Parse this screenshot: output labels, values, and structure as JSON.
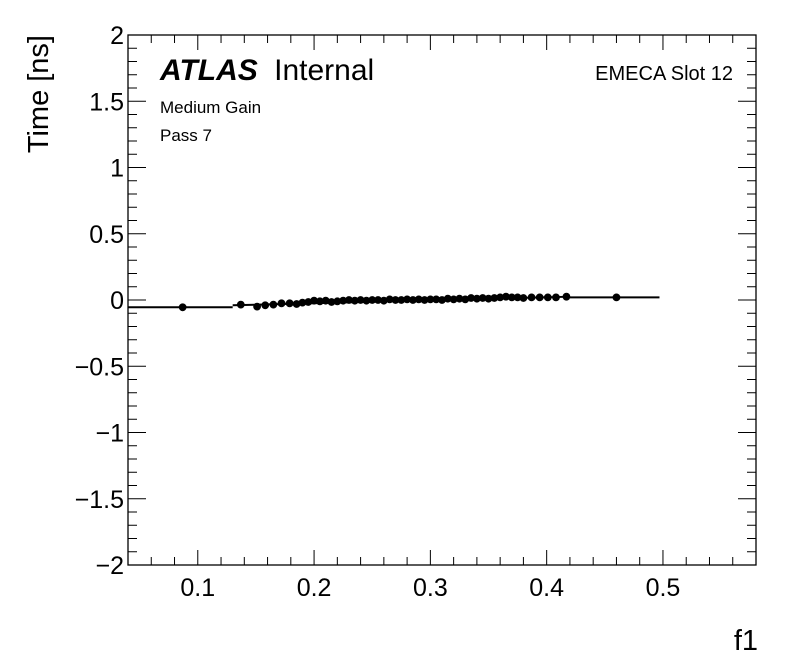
{
  "chart_data": {
    "type": "scatter",
    "xlabel": "f1",
    "ylabel": "Time [ns]",
    "xlim": [
      0.04,
      0.58
    ],
    "ylim": [
      -2,
      2
    ],
    "xticks": [
      0.1,
      0.2,
      0.3,
      0.4,
      0.5
    ],
    "xtick_labels": [
      "0.1",
      "0.2",
      "0.3",
      "0.4",
      "0.5"
    ],
    "yticks": [
      -2,
      -1.5,
      -1,
      -0.5,
      0,
      0.5,
      1,
      1.5,
      2
    ],
    "ytick_labels": [
      "−2",
      "−1.5",
      "−1",
      "−0.5",
      "0",
      "0.5",
      "1",
      "1.5",
      "2"
    ],
    "grid": false,
    "annotations": {
      "atlas": "ATLAS",
      "atlas_status": "Internal",
      "gain": "Medium Gain",
      "pass": "Pass 7",
      "region": "EMECA Slot 12"
    },
    "series": [
      {
        "marker": "circle",
        "color": "#000000",
        "x": [
          0.087,
          0.137,
          0.151,
          0.158,
          0.165,
          0.172,
          0.179,
          0.185,
          0.19,
          0.195,
          0.2,
          0.205,
          0.21,
          0.215,
          0.22,
          0.225,
          0.23,
          0.235,
          0.24,
          0.245,
          0.25,
          0.255,
          0.26,
          0.265,
          0.27,
          0.275,
          0.28,
          0.285,
          0.29,
          0.295,
          0.3,
          0.305,
          0.31,
          0.315,
          0.32,
          0.325,
          0.33,
          0.335,
          0.34,
          0.345,
          0.35,
          0.355,
          0.36,
          0.365,
          0.37,
          0.375,
          0.38,
          0.387,
          0.394,
          0.401,
          0.408,
          0.417,
          0.46
        ],
        "y": [
          -0.055,
          -0.035,
          -0.05,
          -0.04,
          -0.035,
          -0.025,
          -0.025,
          -0.03,
          -0.02,
          -0.015,
          -0.005,
          -0.01,
          -0.005,
          -0.015,
          -0.01,
          -0.005,
          0.0,
          -0.005,
          0.0,
          -0.005,
          0.0,
          0.0,
          -0.005,
          0.005,
          0.0,
          0.0,
          0.005,
          0.0,
          0.005,
          0.0,
          0.005,
          0.005,
          0.0,
          0.01,
          0.005,
          0.01,
          0.005,
          0.015,
          0.01,
          0.015,
          0.01,
          0.015,
          0.02,
          0.025,
          0.02,
          0.02,
          0.015,
          0.02,
          0.02,
          0.02,
          0.02,
          0.025,
          0.02
        ]
      }
    ],
    "fit": [
      {
        "x": [
          0.04,
          0.13
        ],
        "y": [
          -0.055,
          -0.055
        ]
      },
      {
        "x": [
          0.13,
          0.42
        ],
        "y": [
          -0.04,
          0.025
        ]
      },
      {
        "x": [
          0.42,
          0.497
        ],
        "y": [
          0.02,
          0.02
        ]
      }
    ]
  }
}
